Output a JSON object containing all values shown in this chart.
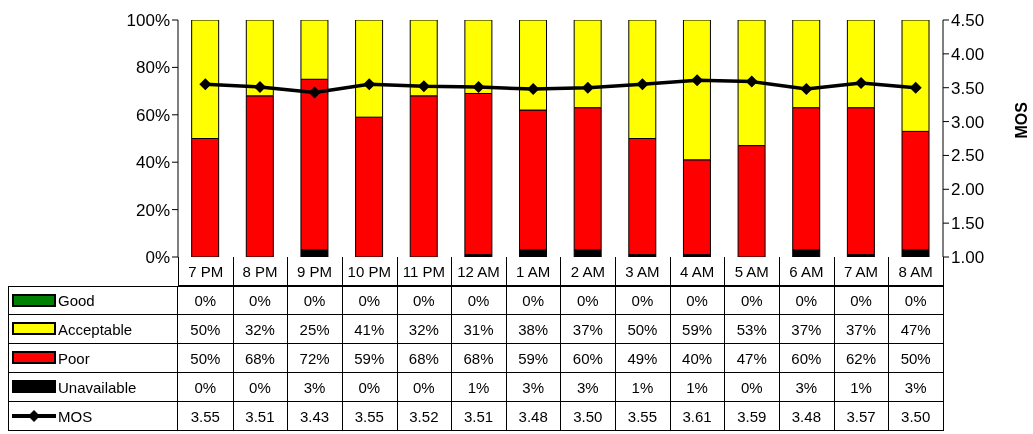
{
  "chart_data": {
    "type": "bar",
    "stacked": true,
    "categories": [
      "7 PM",
      "8 PM",
      "9 PM",
      "10 PM",
      "11 PM",
      "12 AM",
      "1 AM",
      "2 AM",
      "3 AM",
      "4 AM",
      "5 AM",
      "6 AM",
      "7 AM",
      "8 AM"
    ],
    "series": [
      {
        "name": "Unavailable",
        "color": "#000000",
        "values": [
          0,
          0,
          3,
          0,
          0,
          1,
          3,
          3,
          1,
          1,
          0,
          3,
          1,
          3
        ],
        "value_labels": [
          "0%",
          "0%",
          "3%",
          "0%",
          "0%",
          "1%",
          "3%",
          "3%",
          "1%",
          "1%",
          "0%",
          "3%",
          "1%",
          "3%"
        ]
      },
      {
        "name": "Poor",
        "color": "#ff0000",
        "values": [
          50,
          68,
          72,
          59,
          68,
          68,
          59,
          60,
          49,
          40,
          47,
          60,
          62,
          50
        ],
        "value_labels": [
          "50%",
          "68%",
          "72%",
          "59%",
          "68%",
          "68%",
          "59%",
          "60%",
          "49%",
          "40%",
          "47%",
          "60%",
          "62%",
          "50%"
        ]
      },
      {
        "name": "Acceptable",
        "color": "#ffff00",
        "values": [
          50,
          32,
          25,
          41,
          32,
          31,
          38,
          37,
          50,
          59,
          53,
          37,
          37,
          47
        ],
        "value_labels": [
          "50%",
          "32%",
          "25%",
          "41%",
          "32%",
          "31%",
          "38%",
          "37%",
          "50%",
          "59%",
          "53%",
          "37%",
          "37%",
          "47%"
        ]
      },
      {
        "name": "Good",
        "color": "#008000",
        "values": [
          0,
          0,
          0,
          0,
          0,
          0,
          0,
          0,
          0,
          0,
          0,
          0,
          0,
          0
        ],
        "value_labels": [
          "0%",
          "0%",
          "0%",
          "0%",
          "0%",
          "0%",
          "0%",
          "0%",
          "0%",
          "0%",
          "0%",
          "0%",
          "0%",
          "0%"
        ]
      },
      {
        "name": "MOS",
        "type": "line",
        "axis": "y2",
        "color": "#000000",
        "values": [
          3.55,
          3.51,
          3.43,
          3.55,
          3.52,
          3.51,
          3.48,
          3.5,
          3.55,
          3.61,
          3.59,
          3.48,
          3.57,
          3.5
        ],
        "value_labels": [
          "3.55",
          "3.51",
          "3.43",
          "3.55",
          "3.52",
          "3.51",
          "3.48",
          "3.50",
          "3.55",
          "3.61",
          "3.59",
          "3.48",
          "3.57",
          "3.50"
        ]
      }
    ],
    "ylim": [
      0,
      100
    ],
    "yticks": [
      {
        "value": 0,
        "label": "0%"
      },
      {
        "value": 20,
        "label": "20%"
      },
      {
        "value": 40,
        "label": "40%"
      },
      {
        "value": 60,
        "label": "60%"
      },
      {
        "value": 80,
        "label": "80%"
      },
      {
        "value": 100,
        "label": "100%"
      }
    ],
    "y2lim": [
      1,
      4.5
    ],
    "y2ticks": [
      {
        "value": 1,
        "label": "1.00"
      },
      {
        "value": 1.5,
        "label": "1.50"
      },
      {
        "value": 2,
        "label": "2.00"
      },
      {
        "value": 2.5,
        "label": "2.50"
      },
      {
        "value": 3,
        "label": "3.00"
      },
      {
        "value": 3.5,
        "label": "3.50"
      },
      {
        "value": 4,
        "label": "4.00"
      },
      {
        "value": 4.5,
        "label": "4.50"
      }
    ],
    "y2label": "MOS",
    "marker": "diamond",
    "legend": "bottom",
    "grid": false
  }
}
